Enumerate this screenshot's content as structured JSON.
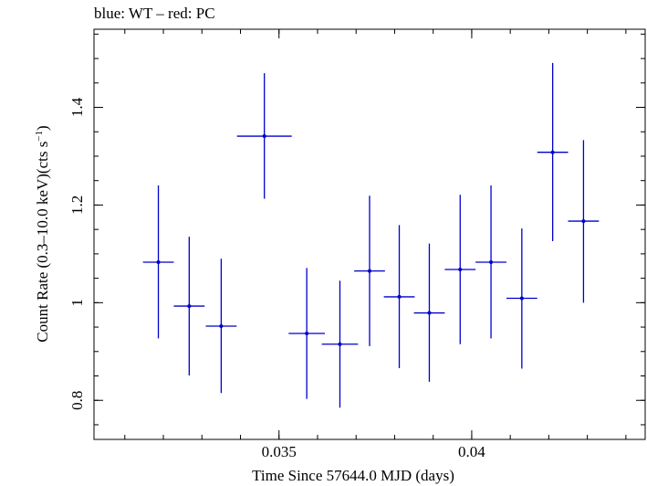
{
  "chart_data": {
    "type": "scatter",
    "title": "blue: WT – red: PC",
    "xlabel": "Time Since 57644.0 MJD (days)",
    "ylabel_main": "Count Rate (0.3–10.0 keV)(cts s",
    "ylabel_sup": "−1",
    "ylabel_close": ")",
    "xlim": [
      0.0302,
      0.0445
    ],
    "ylim": [
      0.72,
      1.56
    ],
    "x_ticks": [
      {
        "value": 0.035,
        "label": "0.035"
      },
      {
        "value": 0.04,
        "label": "0.04"
      }
    ],
    "x_minor_step": 0.001,
    "y_ticks": [
      {
        "value": 0.8,
        "label": "0.8"
      },
      {
        "value": 1.0,
        "label": "1"
      },
      {
        "value": 1.2,
        "label": "1.2"
      },
      {
        "value": 1.4,
        "label": "1.4"
      }
    ],
    "y_minor_step": 0.05,
    "series": [
      {
        "color": "#0000cc",
        "points": [
          {
            "x": 0.03187,
            "xerr": 0.0004,
            "y": 1.083,
            "ylo": 0.927,
            "yhi": 1.24
          },
          {
            "x": 0.03267,
            "xerr": 0.0004,
            "y": 0.993,
            "ylo": 0.851,
            "yhi": 1.135
          },
          {
            "x": 0.0335,
            "xerr": 0.0004,
            "y": 0.952,
            "ylo": 0.815,
            "yhi": 1.09
          },
          {
            "x": 0.03462,
            "xerr": 0.00071,
            "y": 1.341,
            "ylo": 1.213,
            "yhi": 1.47
          },
          {
            "x": 0.03572,
            "xerr": 0.00047,
            "y": 0.937,
            "ylo": 0.803,
            "yhi": 1.071
          },
          {
            "x": 0.03658,
            "xerr": 0.00047,
            "y": 0.915,
            "ylo": 0.785,
            "yhi": 1.045
          },
          {
            "x": 0.03735,
            "xerr": 0.0004,
            "y": 1.065,
            "ylo": 0.911,
            "yhi": 1.219
          },
          {
            "x": 0.03812,
            "xerr": 0.0004,
            "y": 1.012,
            "ylo": 0.866,
            "yhi": 1.159
          },
          {
            "x": 0.0389,
            "xerr": 0.0004,
            "y": 0.979,
            "ylo": 0.838,
            "yhi": 1.121
          },
          {
            "x": 0.0397,
            "xerr": 0.0004,
            "y": 1.068,
            "ylo": 0.915,
            "yhi": 1.221
          },
          {
            "x": 0.0405,
            "xerr": 0.0004,
            "y": 1.083,
            "ylo": 0.927,
            "yhi": 1.24
          },
          {
            "x": 0.0413,
            "xerr": 0.0004,
            "y": 1.009,
            "ylo": 0.865,
            "yhi": 1.152
          },
          {
            "x": 0.0421,
            "xerr": 0.0004,
            "y": 1.308,
            "ylo": 1.126,
            "yhi": 1.491
          },
          {
            "x": 0.0429,
            "xerr": 0.0004,
            "y": 1.167,
            "ylo": 1.0,
            "yhi": 1.333
          }
        ]
      }
    ]
  }
}
